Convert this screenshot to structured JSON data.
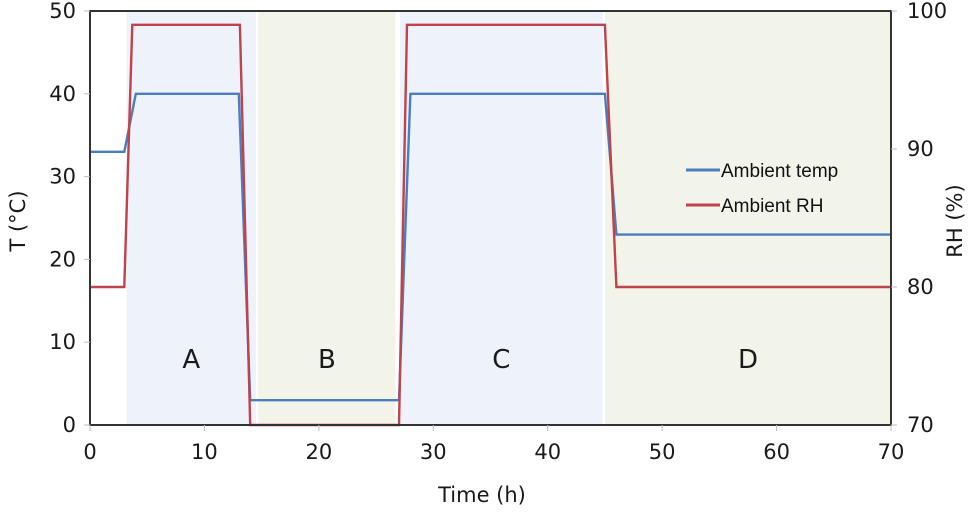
{
  "chart_data": {
    "type": "line",
    "title": "",
    "xlabel": "Time (h)",
    "ylabel": "T (°C)",
    "y2label": "RH (%)",
    "xlim": [
      0,
      70
    ],
    "ylim": [
      0,
      50
    ],
    "y2lim": [
      70,
      100
    ],
    "xticks": [
      0,
      10,
      20,
      30,
      40,
      50,
      60,
      70
    ],
    "yticks": [
      0,
      10,
      20,
      30,
      40,
      50
    ],
    "y2ticks": [
      70,
      80,
      90,
      100
    ],
    "grid": false,
    "legend_position": "right-middle inside",
    "regions": [
      {
        "label": "A",
        "x_start": 3.2,
        "x_end": 14.5,
        "color": "#edf2fb"
      },
      {
        "label": "B",
        "x_start": 14.7,
        "x_end": 26.7,
        "color": "#f2f4ea"
      },
      {
        "label": "C",
        "x_start": 27.1,
        "x_end": 44.8,
        "color": "#edf2fb"
      },
      {
        "label": "D",
        "x_start": 45.0,
        "x_end": 70,
        "color": "#f2f4ea"
      }
    ],
    "series": [
      {
        "name": "Ambient temp",
        "axis": "left",
        "color": "#4a7ebf",
        "x": [
          0,
          3,
          4,
          13,
          14,
          27,
          28,
          45,
          46,
          70
        ],
        "y": [
          33,
          33,
          40,
          40,
          3,
          3,
          40,
          40,
          23,
          23
        ]
      },
      {
        "name": "Ambient RH",
        "axis": "right",
        "color": "#c0424a",
        "x": [
          0,
          3,
          3.7,
          13.1,
          14,
          27,
          27.7,
          45,
          46,
          70
        ],
        "y": [
          80,
          80,
          99,
          99,
          70,
          70,
          99,
          99,
          80,
          80
        ]
      }
    ]
  }
}
